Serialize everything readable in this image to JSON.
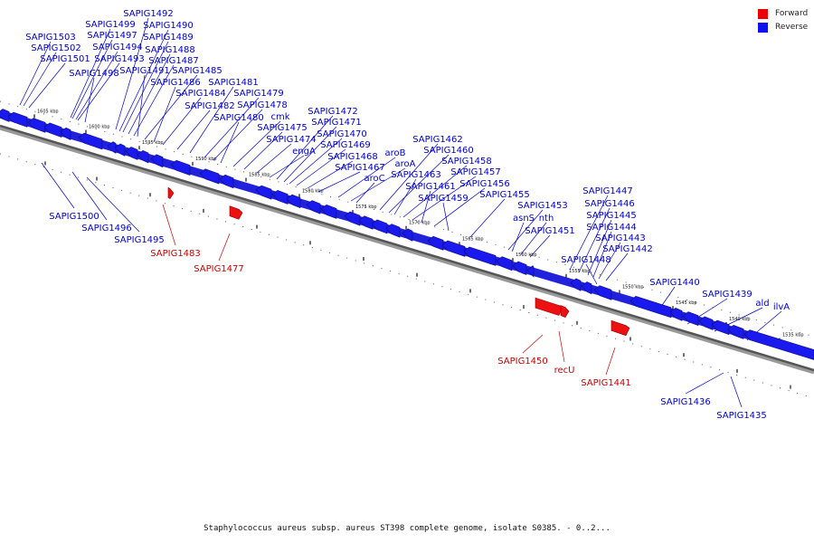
{
  "legend": {
    "forward_label": "Forward",
    "reverse_label": "Reverse",
    "forward_color": "#ee0000",
    "reverse_color": "#1010ee"
  },
  "caption": "Staphylococcus aureus subsp. aureus ST398 complete genome, isolate S0385. - 0..2...",
  "ticks": [
    "1605 kbp",
    "1600 kbp",
    "1595 kbp",
    "1590 kbp",
    "1585 kbp",
    "1580 kbp",
    "1575 kbp",
    "1570 kbp",
    "1565 kbp",
    "1560 kbp",
    "1555 kbp",
    "1550 kbp",
    "1545 kbp",
    "1540 kbp",
    "1535 kbp"
  ],
  "genes_reverse": [
    "SAPIG1503",
    "SAPIG1502",
    "SAPIG1501",
    "SAPIG1499",
    "SAPIG1497",
    "SAPIG1494",
    "SAPIG1493",
    "SAPIG1498",
    "SAPIG1492",
    "SAPIG1490",
    "SAPIG1489",
    "SAPIG1488",
    "SAPIG1487",
    "SAPIG1491",
    "SAPIG1485",
    "SAPIG1486",
    "SAPIG1484",
    "SAPIG1482",
    "SAPIG1481",
    "SAPIG1479",
    "SAPIG1478",
    "SAPIG1480",
    "cmk",
    "SAPIG1475",
    "SAPIG1474",
    "engA",
    "SAPIG1472",
    "SAPIG1471",
    "SAPIG1470",
    "SAPIG1469",
    "SAPIG1468",
    "SAPIG1467",
    "aroB",
    "aroA",
    "aroC",
    "SAPIG1462",
    "SAPIG1460",
    "SAPIG1463",
    "SAPIG1458",
    "SAPIG1457",
    "SAPIG1461",
    "SAPIG1456",
    "SAPIG1459",
    "SAPIG1455",
    "SAPIG1453",
    "asnS",
    "nth",
    "SAPIG1451",
    "SAPIG1447",
    "SAPIG1446",
    "SAPIG1445",
    "SAPIG1444",
    "SAPIG1443",
    "SAPIG1442",
    "SAPIG1448",
    "SAPIG1440",
    "SAPIG1439",
    "ald",
    "ilvA"
  ],
  "genes_reverse_below": [
    "SAPIG1500",
    "SAPIG1496",
    "SAPIG1495",
    "SAPIG1436",
    "SAPIG1435"
  ],
  "genes_forward": [
    "SAPIG1483",
    "SAPIG1477",
    "SAPIG1450",
    "recU",
    "SAPIG1441"
  ]
}
